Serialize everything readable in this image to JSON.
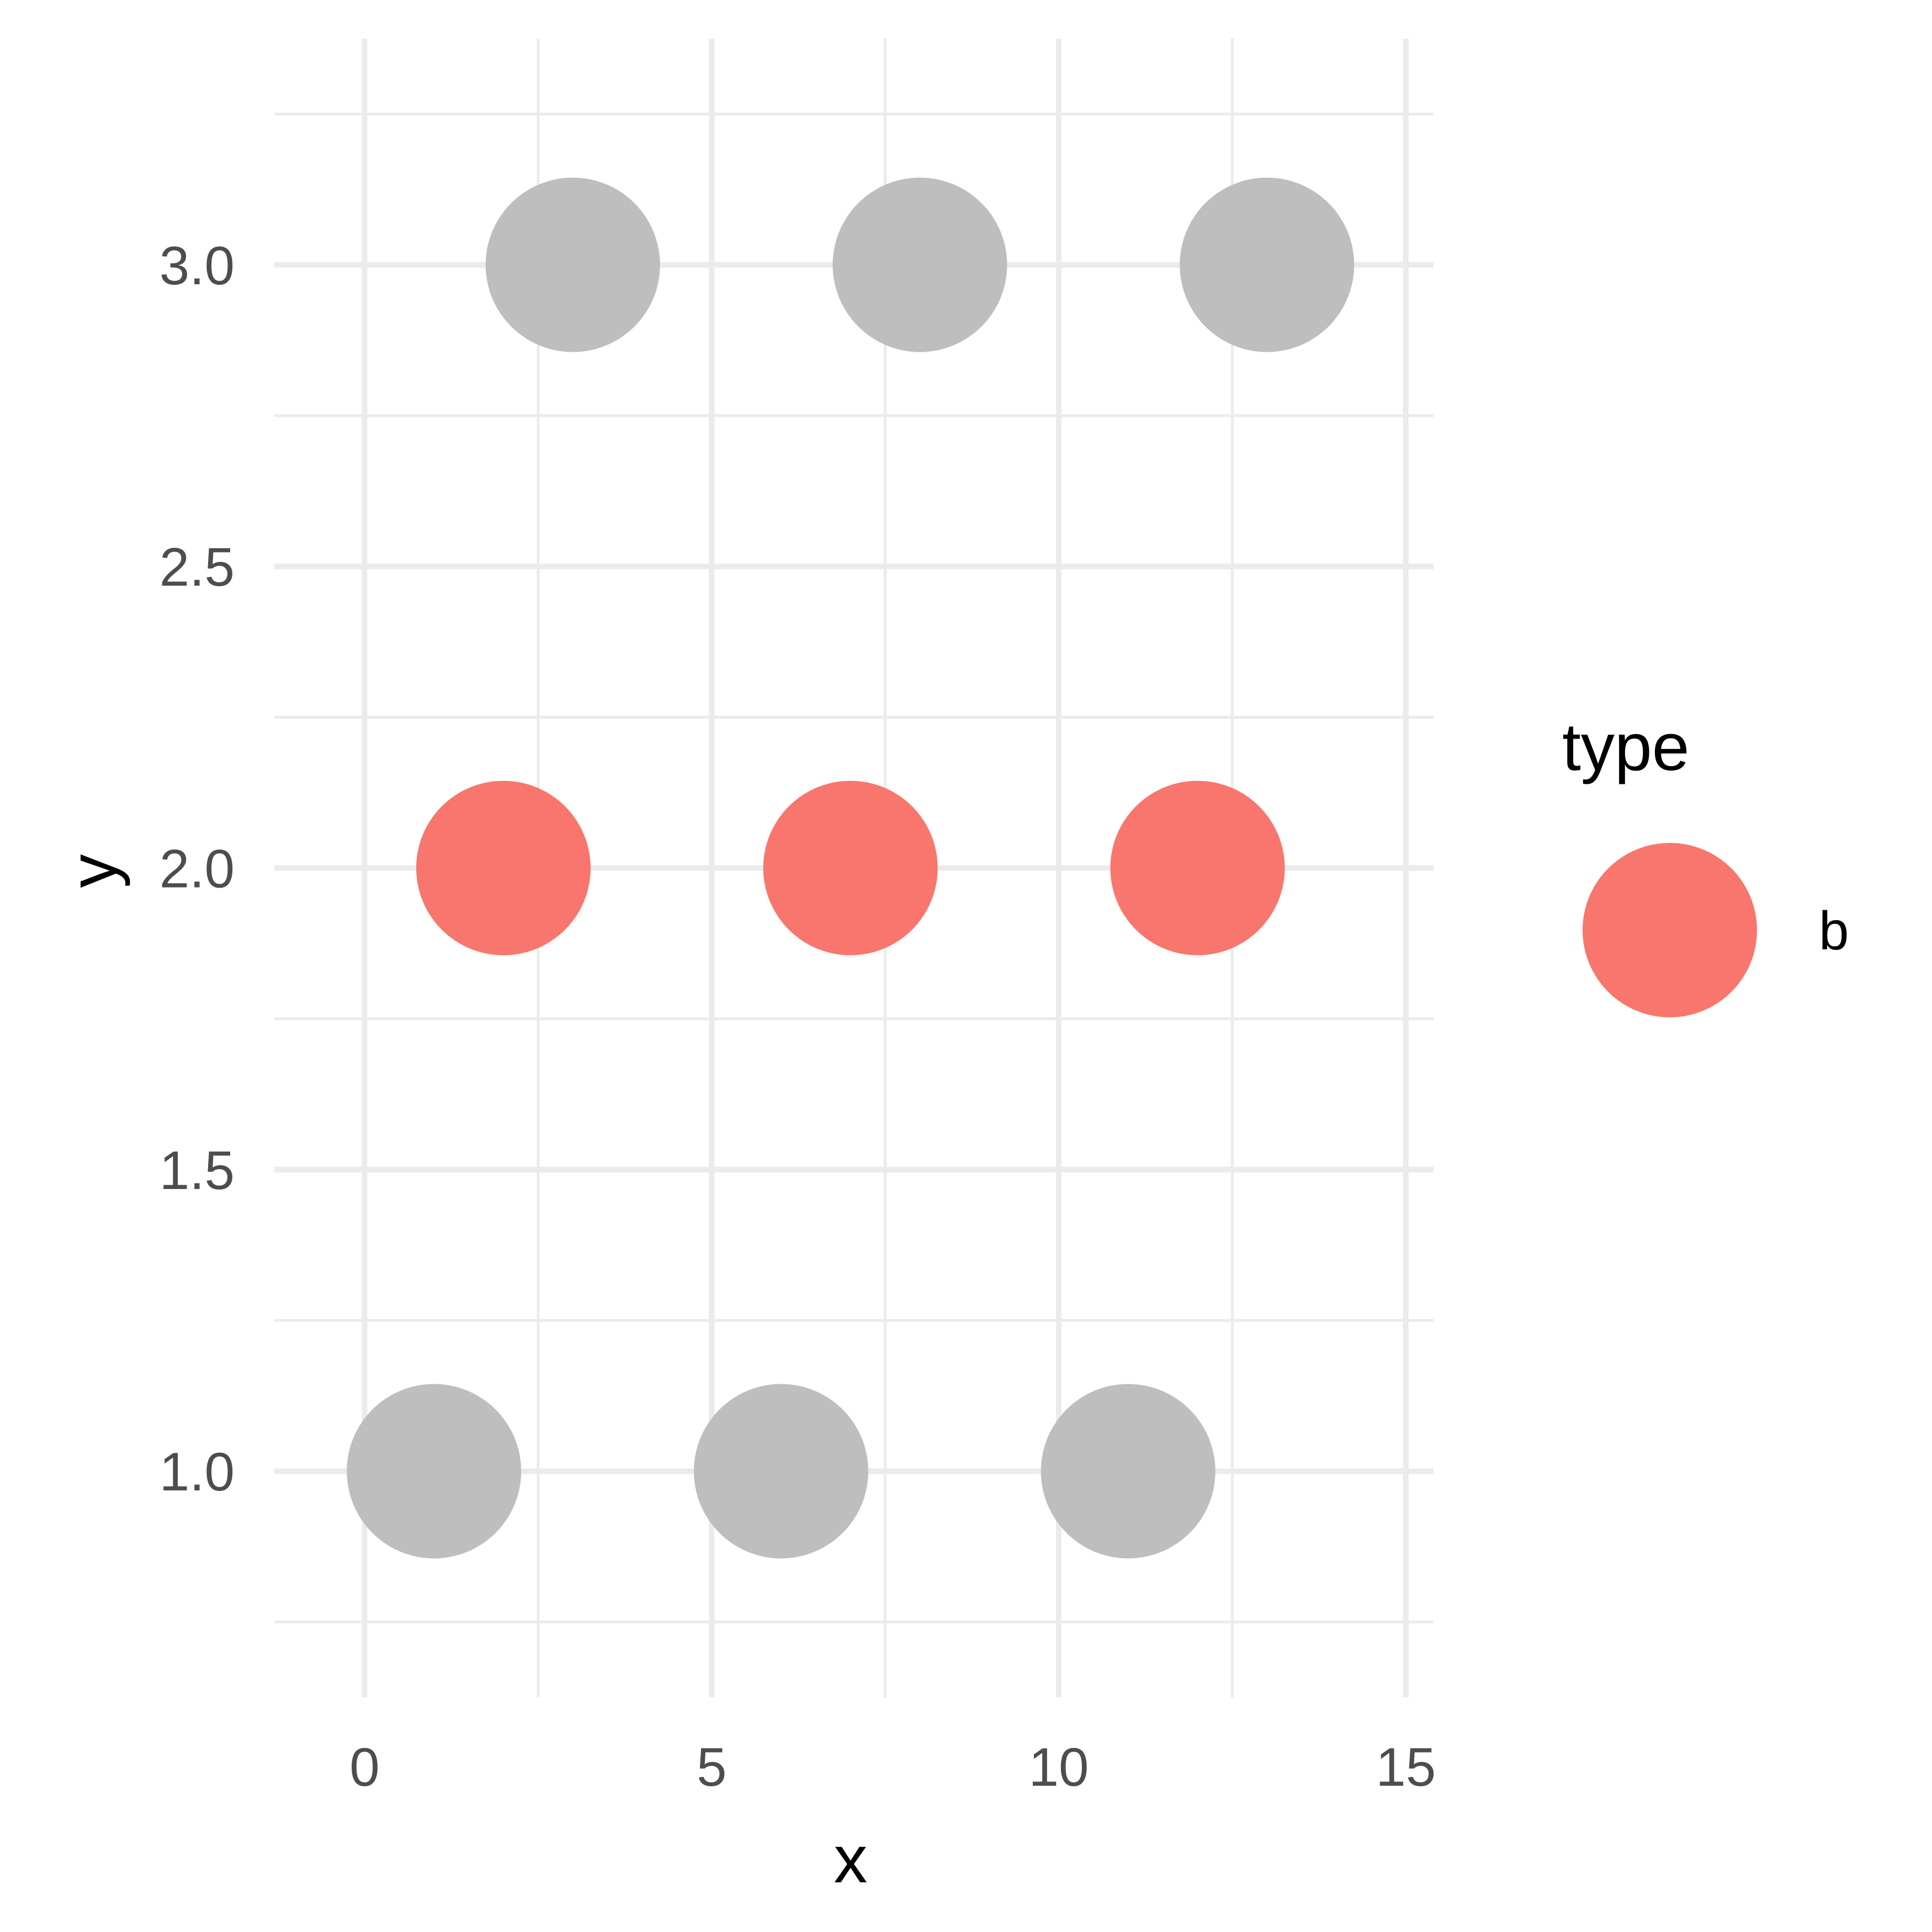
{
  "chart_data": {
    "type": "scatter",
    "xlabel": "x",
    "ylabel": "y",
    "xlim": [
      -1.3,
      15.4
    ],
    "ylim": [
      0.625,
      3.375
    ],
    "x_ticks": [
      0,
      5,
      10,
      15
    ],
    "x_tick_labels": [
      "0",
      "5",
      "10",
      "15"
    ],
    "y_ticks": [
      1.0,
      1.5,
      2.0,
      2.5,
      3.0
    ],
    "y_tick_labels": [
      "1.0",
      "1.5",
      "2.0",
      "2.5",
      "3.0"
    ],
    "grid": true,
    "legend": {
      "title": "type",
      "position": "right",
      "entries": [
        {
          "label": "b",
          "color": "#F8766D"
        }
      ]
    },
    "series": [
      {
        "name": "b",
        "color": "#F8766D",
        "points": [
          {
            "x": 2,
            "y": 2
          },
          {
            "x": 7,
            "y": 2
          },
          {
            "x": 12,
            "y": 2
          }
        ]
      },
      {
        "color": "#BEBEBE",
        "points": [
          {
            "x": 1,
            "y": 1
          },
          {
            "x": 6,
            "y": 1
          },
          {
            "x": 11,
            "y": 1
          },
          {
            "x": 3,
            "y": 3
          },
          {
            "x": 8,
            "y": 3
          },
          {
            "x": 13,
            "y": 3
          }
        ]
      }
    ]
  }
}
